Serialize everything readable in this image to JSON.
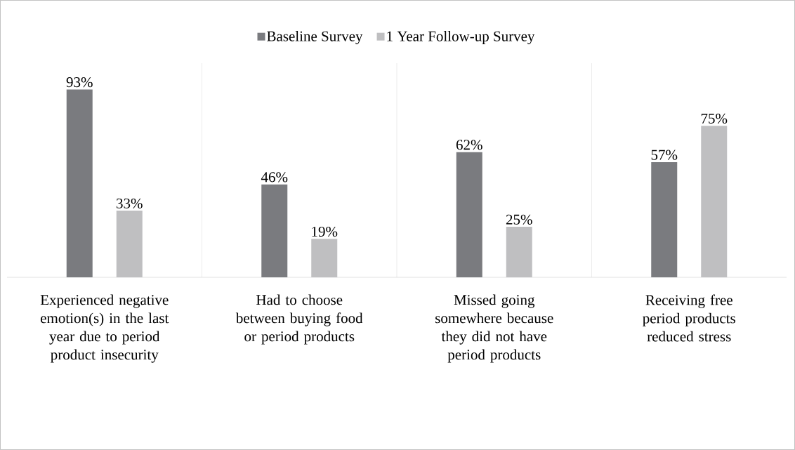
{
  "chart_data": {
    "type": "bar",
    "categories": [
      "Experienced negative emotion(s) in the last year due to period product insecurity",
      "Had to choose between buying food or period products",
      "Missed going somewhere because they did not have period products",
      "Receiving free period products reduced stress"
    ],
    "series": [
      {
        "name": "Baseline Survey",
        "color": "#7a7b7f",
        "values": [
          93,
          46,
          62,
          57
        ],
        "value_labels": [
          "93%",
          "46%",
          "62%",
          "57%"
        ]
      },
      {
        "name": "1 Year Follow-up Survey",
        "color": "#bfbfc1",
        "values": [
          33,
          19,
          25,
          75
        ],
        "value_labels": [
          "33%",
          "19%",
          "25%",
          "75%"
        ]
      }
    ],
    "grid": "x",
    "legend": "top"
  }
}
